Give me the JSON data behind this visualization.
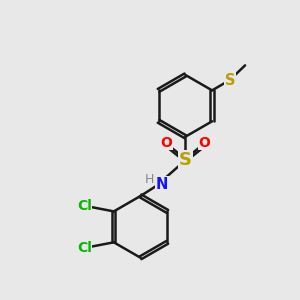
{
  "bg_color": "#e8e8e8",
  "bond_color": "#1a1a1a",
  "N_color": "#1414ff",
  "O_color": "#ff0000",
  "S_color": "#b8a000",
  "Cl_color": "#00bb00",
  "H_color": "#888888",
  "line_width": 1.8,
  "dbo": 0.055,
  "figsize": [
    3.0,
    3.0
  ],
  "dpi": 100,
  "xlim": [
    0,
    10
  ],
  "ylim": [
    0,
    10
  ]
}
